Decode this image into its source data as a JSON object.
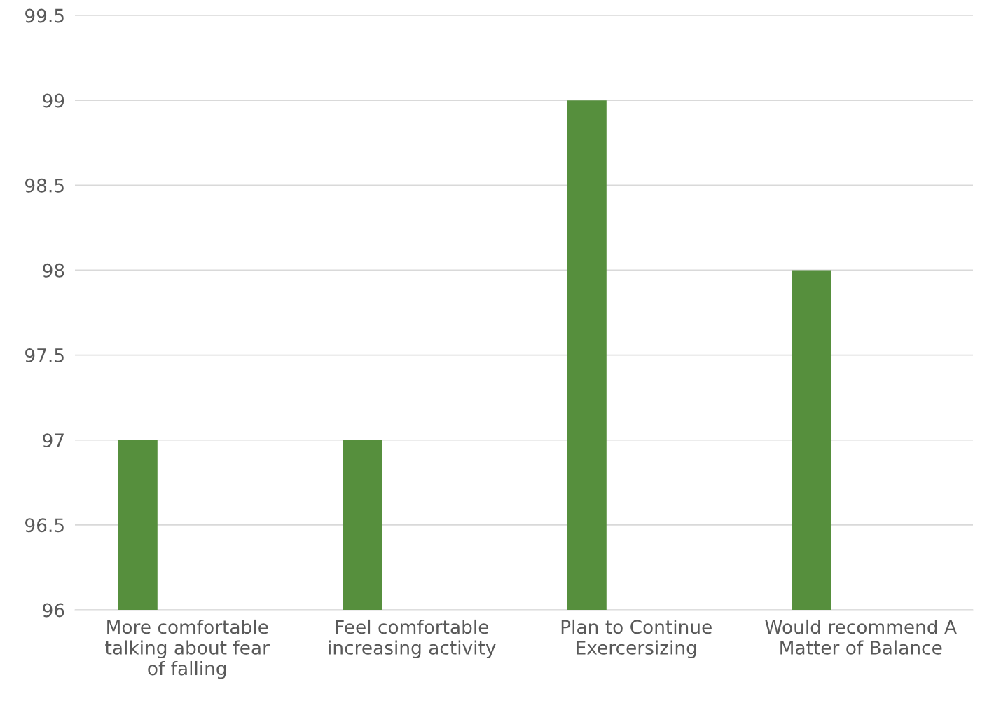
{
  "chart_data": {
    "type": "bar",
    "categories": [
      "More comfortable talking about fear of falling",
      "Feel comfortable increasing activity",
      "Plan to Continue Exercersizing",
      "Would recommend A Matter of Balance"
    ],
    "values": [
      97,
      97,
      99,
      98
    ],
    "color": "#568f3d",
    "ylim": [
      96,
      99.5
    ],
    "yticks": [
      96,
      96.5,
      97,
      97.5,
      98,
      98.5,
      99,
      99.5
    ],
    "grid": "y",
    "legend": false
  }
}
